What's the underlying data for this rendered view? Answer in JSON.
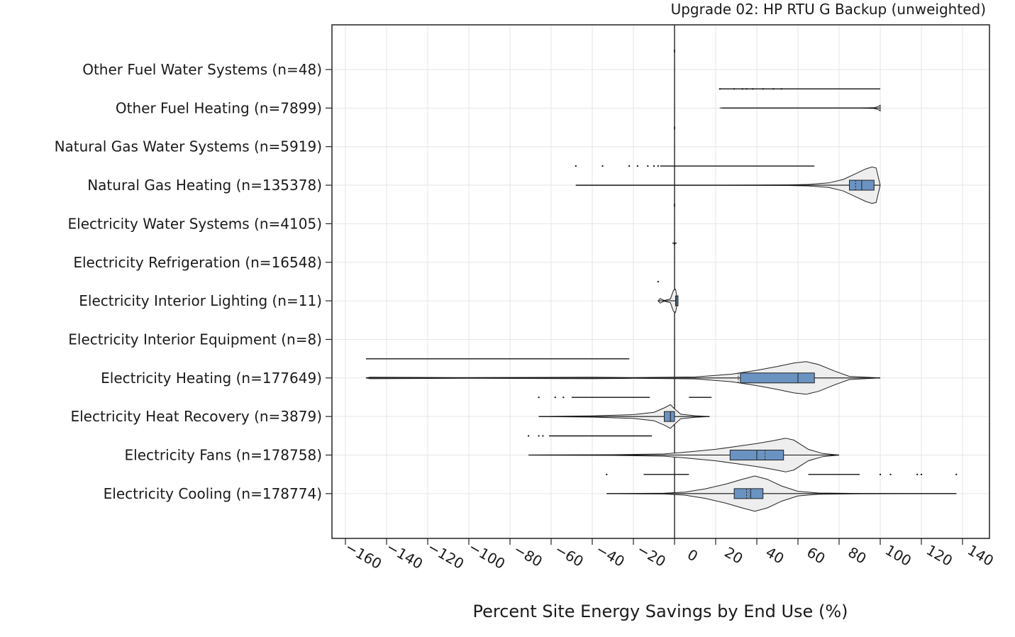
{
  "chart_data": {
    "type": "violin",
    "title": "Upgrade 02: HP RTU G Backup (unweighted)",
    "xlabel": "Percent Site Energy Savings by End Use (%)",
    "ylabel": "",
    "xlim": [
      -165,
      143
    ],
    "xticks": [
      -160,
      -140,
      -120,
      -100,
      -80,
      -60,
      -40,
      -20,
      0,
      20,
      40,
      60,
      80,
      100,
      120,
      140
    ],
    "xtick_labels": [
      "−160",
      "−140",
      "−120",
      "−100",
      "−80",
      "−60",
      "−40",
      "−20",
      "0",
      "20",
      "40",
      "60",
      "80",
      "100",
      "120",
      "140"
    ],
    "grid": true,
    "colors": {
      "box_fill": "#6a93c2",
      "violin_fill": "#eeeeee",
      "outline": "#222222",
      "grid": "#e6e6e6"
    },
    "categories": [
      {
        "label": "Other Fuel Water Systems  (n=48)",
        "violin": null,
        "box": null,
        "whisker": null,
        "outliers": {
          "segments": [
            [
              0,
              0
            ]
          ]
        },
        "tick": 0
      },
      {
        "label": "Other Fuel Heating  (n=7899)",
        "violin": {
          "profile": [
            [
              22,
              0.0
            ],
            [
              60,
              0.002
            ],
            [
              90,
              0.005
            ],
            [
              97,
              0.02
            ],
            [
              99,
              0.08
            ],
            [
              100,
              0.15
            ]
          ]
        },
        "box": null,
        "whisker": [
          23,
          100
        ],
        "outliers": {
          "segments": [
            [
              22,
              100
            ]
          ],
          "dots": [
            22,
            29,
            33,
            35,
            38,
            43,
            48,
            52
          ]
        }
      },
      {
        "label": "Natural Gas Water Systems  (n=5919)",
        "violin": null,
        "box": null,
        "whisker": null,
        "outliers": {
          "segments": [
            [
              0,
              0
            ]
          ]
        },
        "tick": 0
      },
      {
        "label": "Natural Gas Heating  (n=135378)",
        "violin": {
          "profile": [
            [
              -48,
              0.0
            ],
            [
              40,
              0.005
            ],
            [
              55,
              0.015
            ],
            [
              65,
              0.04
            ],
            [
              75,
              0.12
            ],
            [
              82,
              0.3
            ],
            [
              88,
              0.6
            ],
            [
              93,
              0.85
            ],
            [
              96,
              0.95
            ],
            [
              98,
              0.9
            ],
            [
              100,
              0.0
            ]
          ]
        },
        "box": {
          "q1": 85,
          "median": 91,
          "mean": 88,
          "q3": 97
        },
        "whisker": [
          -48,
          100
        ],
        "outliers": {
          "segments": [
            [
              -7,
              68
            ]
          ],
          "dots": [
            -48,
            -35,
            -22,
            -18,
            -13,
            -10,
            -8
          ]
        }
      },
      {
        "label": "Electricity Water Systems  (n=4105)",
        "violin": null,
        "box": null,
        "whisker": null,
        "outliers": {
          "segments": [
            [
              0,
              0
            ]
          ]
        },
        "tick": 0
      },
      {
        "label": "Electricity Refrigeration  (n=16548)",
        "violin": null,
        "box": null,
        "whisker": null,
        "outliers": {
          "segments": [
            [
              -1,
              1
            ]
          ]
        },
        "tick": 0
      },
      {
        "label": "Electricity Interior Lighting  (n=11)",
        "violin": {
          "profile": [
            [
              -8,
              0.0
            ],
            [
              -7,
              0.12
            ],
            [
              -5,
              0.02
            ],
            [
              -2,
              0.1
            ],
            [
              -0.5,
              0.55
            ],
            [
              0.5,
              0.6
            ],
            [
              1.5,
              0.0
            ]
          ]
        },
        "box": {
          "q1": 0.5,
          "median": 1,
          "mean": 1,
          "q3": 1.7
        },
        "whisker": [
          -8,
          1.7
        ],
        "outliers": {
          "dots": [
            -8
          ]
        }
      },
      {
        "label": "Electricity Interior Equipment  (n=8)",
        "violin": null,
        "box": null,
        "whisker": null,
        "outliers": null
      },
      {
        "label": "Electricity Heating  (n=177649)",
        "violin": {
          "profile": [
            [
              -150,
              0.0
            ],
            [
              -148,
              0.04
            ],
            [
              -100,
              0.02
            ],
            [
              -40,
              0.04
            ],
            [
              -20,
              0.02
            ],
            [
              10,
              0.05
            ],
            [
              28,
              0.2
            ],
            [
              40,
              0.4
            ],
            [
              50,
              0.6
            ],
            [
              58,
              0.78
            ],
            [
              64,
              0.85
            ],
            [
              70,
              0.7
            ],
            [
              78,
              0.35
            ],
            [
              85,
              0.08
            ],
            [
              100,
              0.0
            ]
          ]
        },
        "box": {
          "q1": 32,
          "median": 60,
          "mean": 31,
          "q3": 68
        },
        "whisker": [
          -150,
          100
        ],
        "outliers": {
          "segments": [
            [
              -150,
              -22
            ]
          ]
        }
      },
      {
        "label": "Electricity Heat Recovery  (n=3879)",
        "violin": {
          "profile": [
            [
              -66,
              0.0
            ],
            [
              -40,
              0.03
            ],
            [
              -20,
              0.1
            ],
            [
              -10,
              0.22
            ],
            [
              -5,
              0.45
            ],
            [
              -2,
              0.62
            ],
            [
              0,
              0.4
            ],
            [
              3,
              0.12
            ],
            [
              10,
              0.04
            ],
            [
              17,
              0.0
            ]
          ]
        },
        "box": {
          "q1": -5,
          "median": -2,
          "mean": -2,
          "q3": 0
        },
        "whisker": [
          -66,
          17
        ],
        "outliers": {
          "segments": [
            [
              -50,
              -12
            ],
            [
              7,
              18
            ]
          ],
          "dots": [
            -66,
            -58,
            -54
          ]
        }
      },
      {
        "label": "Electricity Fans  (n=178758)",
        "violin": {
          "profile": [
            [
              -71,
              0.0
            ],
            [
              -30,
              0.02
            ],
            [
              -5,
              0.06
            ],
            [
              5,
              0.15
            ],
            [
              20,
              0.3
            ],
            [
              30,
              0.45
            ],
            [
              40,
              0.6
            ],
            [
              48,
              0.75
            ],
            [
              54,
              0.88
            ],
            [
              58,
              0.78
            ],
            [
              65,
              0.3
            ],
            [
              72,
              0.08
            ],
            [
              80,
              0.0
            ]
          ]
        },
        "box": {
          "q1": 27,
          "median": 40,
          "mean": 44,
          "q3": 53
        },
        "whisker": [
          -71,
          80
        ],
        "outliers": {
          "segments": [
            [
              -61,
              -11
            ]
          ],
          "dots": [
            -71,
            -66,
            -64
          ]
        }
      },
      {
        "label": "Electricity Cooling  (n=178774)",
        "violin": {
          "profile": [
            [
              -33,
              0.0
            ],
            [
              -5,
              0.02
            ],
            [
              5,
              0.08
            ],
            [
              15,
              0.25
            ],
            [
              25,
              0.5
            ],
            [
              33,
              0.75
            ],
            [
              39,
              0.92
            ],
            [
              45,
              0.75
            ],
            [
              52,
              0.4
            ],
            [
              60,
              0.12
            ],
            [
              70,
              0.03
            ],
            [
              90,
              0.01
            ],
            [
              137,
              0.0
            ]
          ]
        },
        "box": {
          "q1": 29,
          "median": 37,
          "mean": 35,
          "q3": 43
        },
        "whisker": [
          -33,
          137
        ],
        "outliers": {
          "segments": [
            [
              -15,
              7
            ],
            [
              65,
              90
            ]
          ],
          "dots": [
            -33,
            100,
            105,
            118,
            120,
            137
          ]
        }
      }
    ]
  }
}
